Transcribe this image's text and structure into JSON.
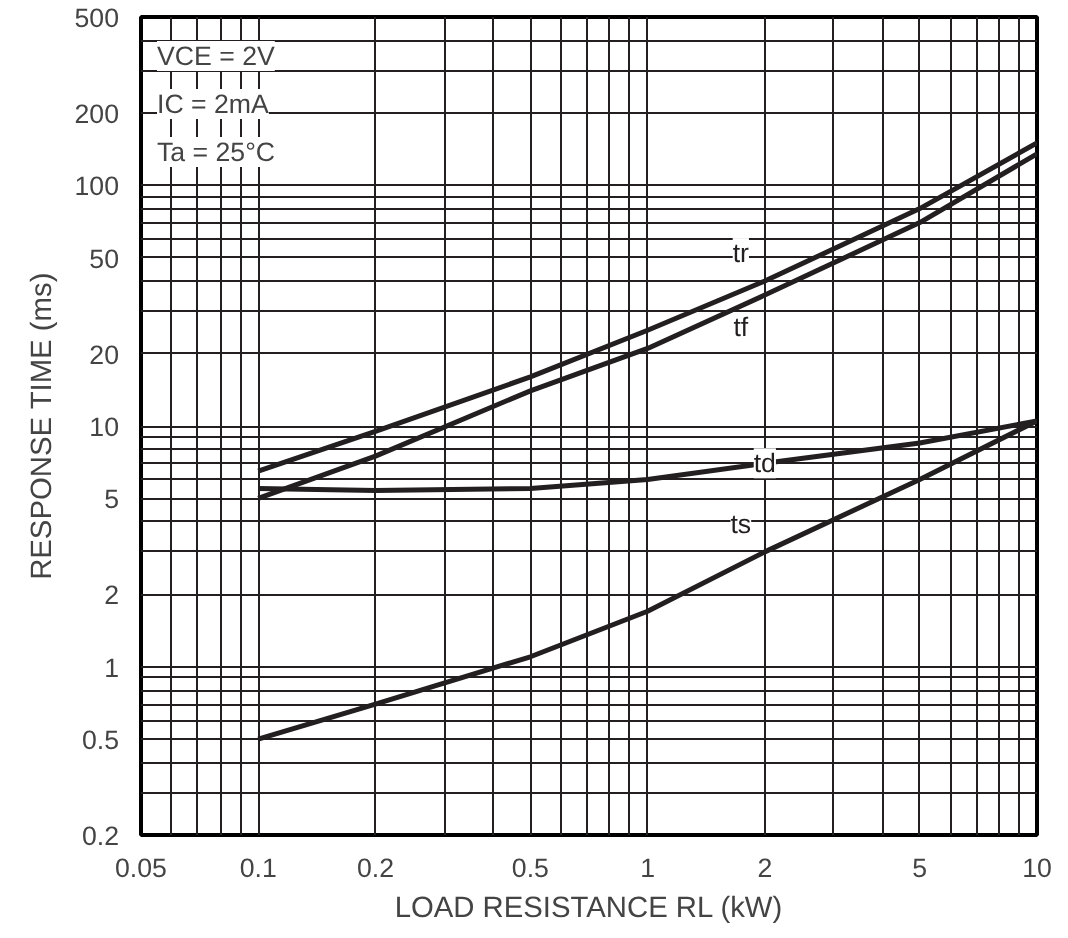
{
  "chart_data": {
    "type": "line",
    "xlabel": "LOAD RESISTANCE RL (kW)",
    "ylabel": "RESPONSE TIME (ms)",
    "x": [
      0.1,
      0.2,
      0.5,
      1,
      2,
      5,
      10
    ],
    "series": [
      {
        "name": "tr",
        "color": "#231f20",
        "values": [
          6.5,
          9.5,
          16,
          25,
          40,
          80,
          150
        ]
      },
      {
        "name": "tf",
        "color": "#231f20",
        "values": [
          5,
          7.5,
          14,
          21,
          35,
          70,
          135
        ]
      },
      {
        "name": "td",
        "color": "#231f20",
        "values": [
          5.5,
          5.4,
          5.5,
          6,
          7,
          8.5,
          10.5
        ]
      },
      {
        "name": "ts",
        "color": "#231f20",
        "values": [
          0.5,
          0.7,
          1.1,
          1.7,
          3,
          6,
          10.5
        ]
      }
    ],
    "log": "xy",
    "xlim": [
      0.05,
      10
    ],
    "ylim": [
      0.2,
      500
    ],
    "xticks": [
      0.05,
      0.1,
      0.2,
      0.5,
      1,
      2,
      5,
      10
    ],
    "yticks": [
      0.2,
      0.5,
      1,
      2,
      5,
      10,
      20,
      50,
      100,
      200,
      500
    ],
    "grid": true,
    "marker": "none",
    "line_style": "solid",
    "annotations": [
      "VCE = 2V",
      "IC = 2mA",
      "Ta = 25°C"
    ]
  }
}
